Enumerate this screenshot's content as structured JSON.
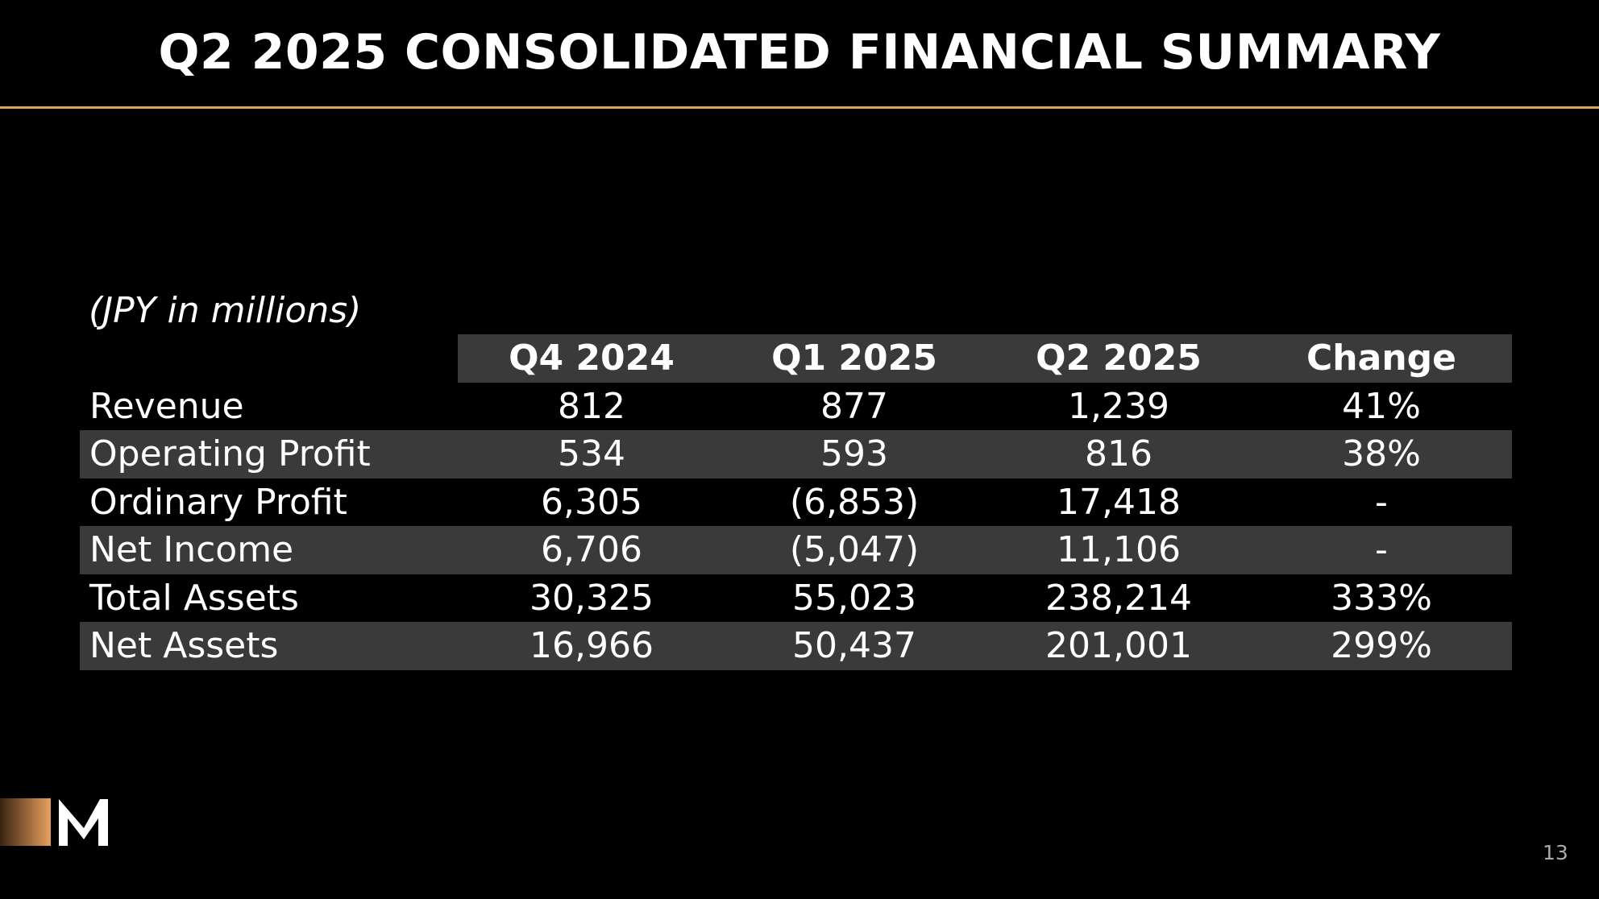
{
  "title": "Q2 2025 CONSOLIDATED FINANCIAL SUMMARY",
  "subtitle": "(JPY in millions)",
  "table": {
    "header": [
      "Q4 2024",
      "Q1 2025",
      "Q2 2025",
      "Change"
    ],
    "rows": [
      [
        "Revenue",
        "812",
        "877",
        "1,239",
        "41%"
      ],
      [
        "Operating Profit",
        "534",
        "593",
        "816",
        "38%"
      ],
      [
        "Ordinary Profit",
        "6,305",
        "(6,853)",
        "17,418",
        "-"
      ],
      [
        "Net Income",
        "6,706",
        "(5,047)",
        "11,106",
        "-"
      ],
      [
        "Total Assets",
        "30,325",
        "55,023",
        "238,214",
        "333%"
      ],
      [
        "Net Assets",
        "16,966",
        "50,437",
        "201,001",
        "299%"
      ]
    ]
  },
  "page_number": "13"
}
